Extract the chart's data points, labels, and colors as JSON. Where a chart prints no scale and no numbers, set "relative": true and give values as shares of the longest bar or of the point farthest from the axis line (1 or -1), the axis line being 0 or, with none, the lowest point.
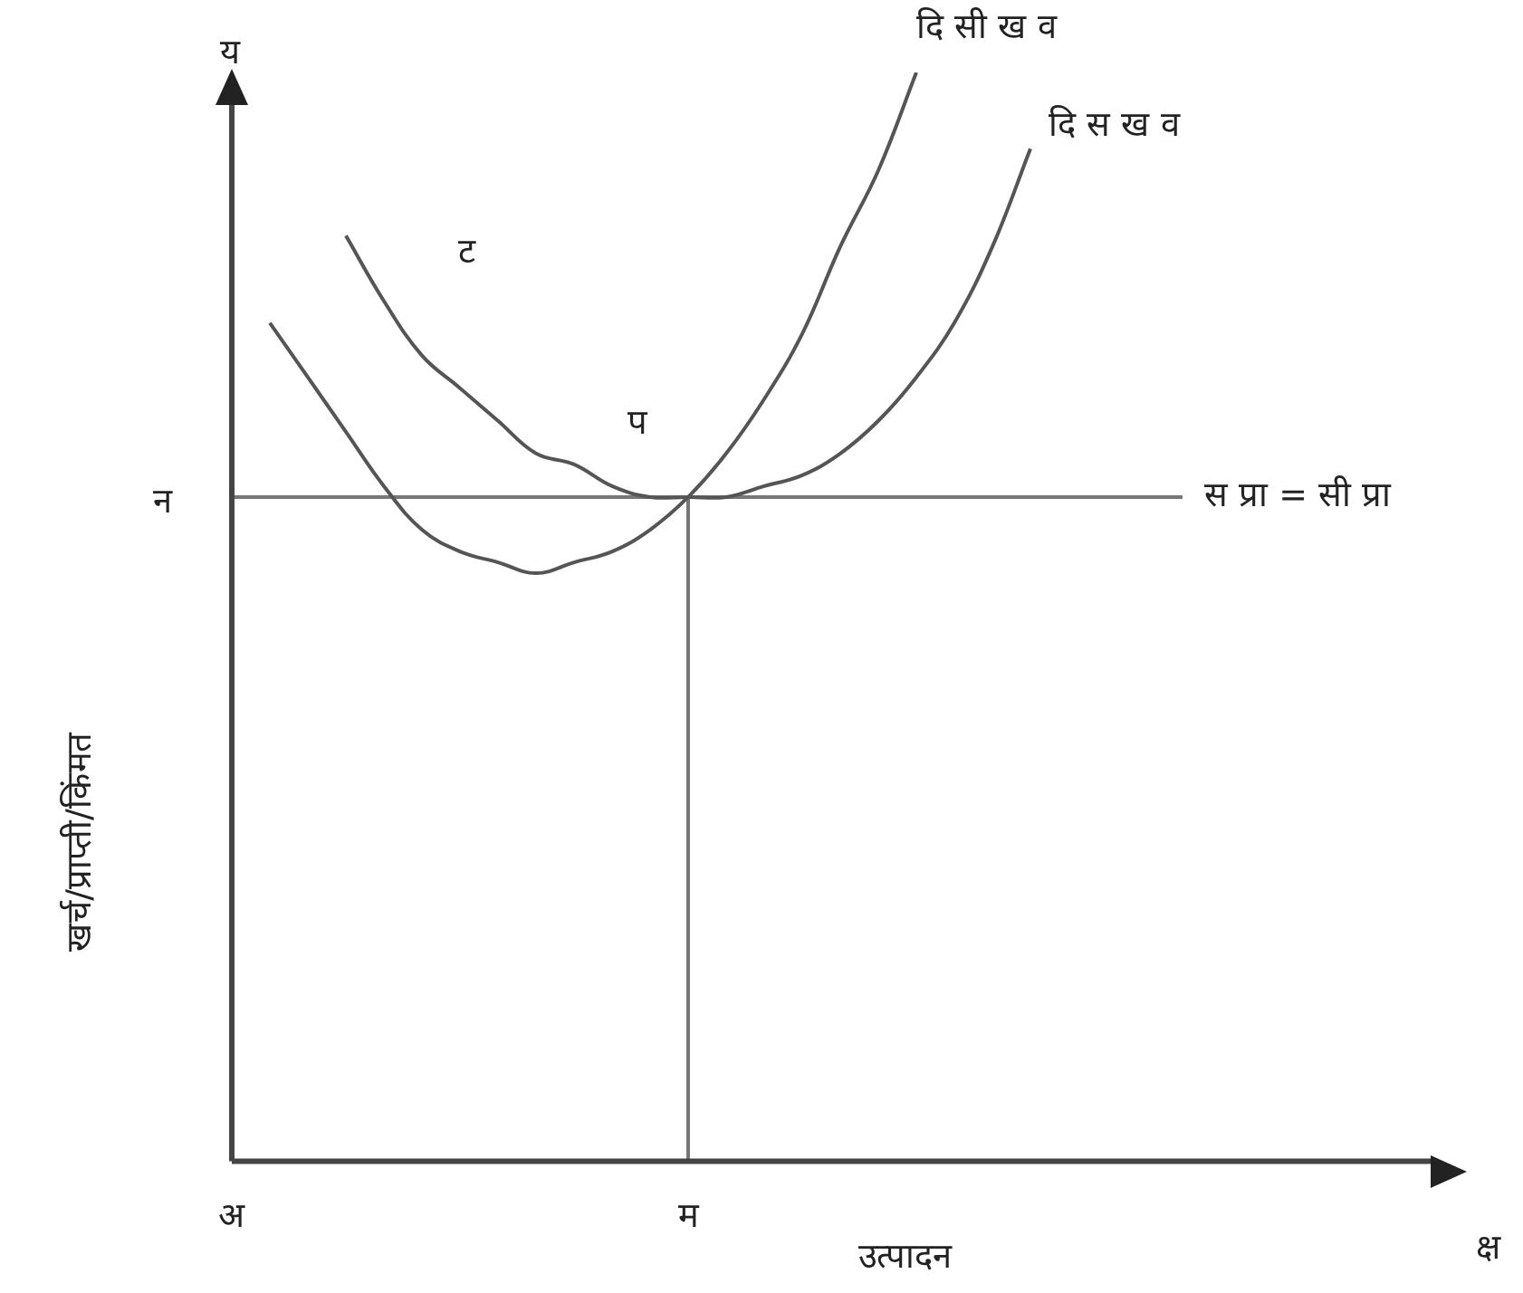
{
  "chart_data": {
    "type": "line",
    "relative": true,
    "xlabel": "उत्पादन",
    "ylabel": "खर्च/प्राप्ती/किंमत",
    "categories": [
      "अ",
      null,
      null,
      null,
      null,
      null,
      null,
      null,
      null,
      null,
      null,
      null,
      "म",
      null,
      null,
      null,
      null,
      null,
      null,
      null,
      null,
      null,
      null,
      null,
      null,
      null
    ],
    "series": [
      {
        "name": "दि सी ख व",
        "color": "#555555",
        "values": [
          null,
          0.77,
          0.72,
          0.67,
          0.62,
          0.58,
          0.56,
          0.55,
          0.54,
          0.55,
          0.56,
          0.58,
          0.61,
          0.65,
          0.7,
          0.76,
          0.84,
          0.91,
          1,
          null,
          null,
          null,
          null,
          null,
          null,
          null
        ]
      },
      {
        "name": "दि स ख व",
        "color": "#555555",
        "values": [
          null,
          null,
          null,
          0.85,
          0.79,
          0.74,
          0.71,
          0.68,
          0.65,
          0.64,
          0.62,
          0.61,
          0.61,
          0.61,
          0.62,
          0.63,
          0.65,
          0.68,
          0.72,
          0.77,
          0.84,
          0.93,
          null,
          null,
          null,
          null
        ]
      }
    ],
    "ref_lines": [
      {
        "axis": "y",
        "value": 0.61,
        "label": "स प्रा = सी प्रा",
        "color": "#777777"
      },
      {
        "axis": "x",
        "value": "म",
        "label": null,
        "color": "#777777"
      }
    ],
    "annotations": [
      "य",
      "क्ष",
      "ट",
      "न",
      {
        "text": "प",
        "x": "म",
        "y": 0.61
      }
    ],
    "legend": false,
    "grid": false,
    "marker": "none",
    "line_style": "solid"
  }
}
